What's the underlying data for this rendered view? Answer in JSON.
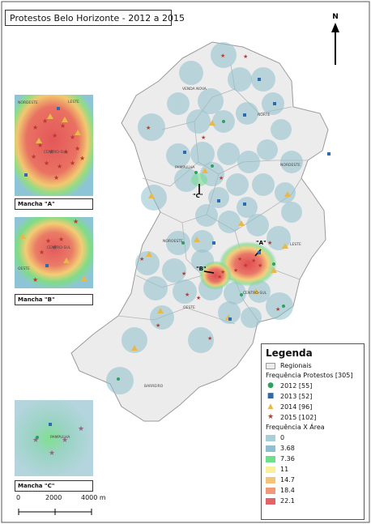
{
  "title": "Protestos Belo Horizonte - 2012 a 2015",
  "north_label": "N",
  "region_labels": [
    "VENDA NOVA",
    "NORTE",
    "NORDESTE",
    "PAMPULHA",
    "NOROESTE",
    "LESTE",
    "OESTE",
    "CENTRO-SUL",
    "BARREIRO"
  ],
  "callouts": [
    "\"A\"",
    "\"B\"",
    "\"C\""
  ],
  "insets": {
    "a": {
      "caption": "Mancha \"A\"",
      "labels": [
        "NORDESTE",
        "LESTE",
        "CENTRO-SUL"
      ]
    },
    "b": {
      "caption": "Mancha \"B\"",
      "labels": [
        "CENTRO-SUL",
        "OESTE"
      ]
    },
    "c": {
      "caption": "Mancha \"C\"",
      "labels": [
        "PAMPULHA"
      ]
    }
  },
  "legend": {
    "title": "Legenda",
    "regions_label": "Regionais",
    "freq_title": "Frequência Protestos [305]",
    "series": [
      {
        "label": "2012 [55]",
        "symbol": "circle-icon",
        "color": "#2ca25f"
      },
      {
        "label": "2013 [52]",
        "symbol": "square-icon",
        "color": "#2b6cb0"
      },
      {
        "label": "2014 [96]",
        "symbol": "triangle-icon",
        "color": "#e8b84a"
      },
      {
        "label": "2015 [102]",
        "symbol": "star-icon",
        "color": "#c0392b"
      }
    ],
    "area_title": "Frequência X Área",
    "classes": [
      {
        "label": "0",
        "color": "#a7cfd8"
      },
      {
        "label": "3.68",
        "color": "#8fc0d0"
      },
      {
        "label": "7.36",
        "color": "#6fe08a"
      },
      {
        "label": "11",
        "color": "#f7f29a"
      },
      {
        "label": "14.7",
        "color": "#f4c47a"
      },
      {
        "label": "18.4",
        "color": "#f09a7a"
      },
      {
        "label": "22.1",
        "color": "#e0646a"
      }
    ]
  },
  "scale": {
    "labels": [
      "0",
      "2000",
      "4000 m"
    ]
  }
}
